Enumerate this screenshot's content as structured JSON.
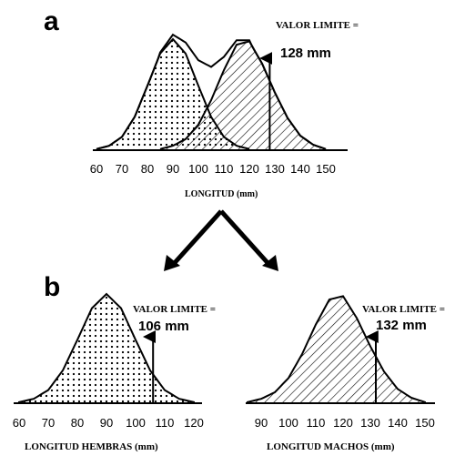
{
  "panel_a": {
    "letter": "a",
    "limit_label": "VALOR LIMITE =",
    "limit_value": "128 mm",
    "x_axis_title": "LONGITUD (mm)",
    "ticks": [
      "60",
      "70",
      "80",
      "90",
      "100",
      "110",
      "120",
      "130",
      "140",
      "150"
    ]
  },
  "panel_b": {
    "letter": "b",
    "females": {
      "limit_label": "VALOR LIMITE =",
      "limit_value": "106 mm",
      "x_axis_title": "LONGITUD HEMBRAS (mm)",
      "ticks": [
        "60",
        "70",
        "80",
        "90",
        "100",
        "110",
        "120"
      ]
    },
    "males": {
      "limit_label": "VALOR LIMITE =",
      "limit_value": "132 mm",
      "x_axis_title": "LONGITUD MACHOS (mm)",
      "ticks": [
        "90",
        "100",
        "110",
        "120",
        "130",
        "140",
        "150"
      ]
    }
  },
  "chart_data": [
    {
      "type": "area",
      "xlabel": "LONGITUD (mm)",
      "xlim": [
        60,
        150
      ],
      "series": [
        {
          "x": [
            60,
            65,
            70,
            75,
            80,
            85,
            90,
            95,
            100,
            105,
            110,
            115,
            120
          ],
          "y": [
            0.01,
            0.04,
            0.12,
            0.3,
            0.58,
            0.87,
            1.0,
            0.87,
            0.58,
            0.3,
            0.12,
            0.04,
            0.01
          ]
        },
        {
          "x": [
            85,
            90,
            95,
            100,
            105,
            110,
            115,
            120,
            125,
            130,
            135,
            140,
            145,
            150
          ],
          "y": [
            0.01,
            0.04,
            0.1,
            0.23,
            0.45,
            0.72,
            0.95,
            0.98,
            0.78,
            0.52,
            0.29,
            0.13,
            0.05,
            0.01
          ]
        }
      ],
      "annotations": [
        {
          "text": "128 mm",
          "x": 128
        }
      ]
    },
    {
      "type": "area",
      "xlabel": "LONGITUD HEMBRAS (mm)",
      "xlim": [
        60,
        120
      ],
      "series": [
        {
          "x": [
            60,
            65,
            70,
            75,
            80,
            85,
            90,
            95,
            100,
            105,
            110,
            115,
            120
          ],
          "y": [
            0.01,
            0.04,
            0.12,
            0.3,
            0.58,
            0.87,
            1.0,
            0.87,
            0.58,
            0.3,
            0.12,
            0.04,
            0.01
          ]
        }
      ],
      "annotations": [
        {
          "text": "106 mm",
          "x": 106
        }
      ]
    },
    {
      "type": "area",
      "xlabel": "LONGITUD MACHOS (mm)",
      "xlim": [
        90,
        150
      ],
      "series": [
        {
          "x": [
            85,
            90,
            95,
            100,
            105,
            110,
            115,
            120,
            125,
            130,
            135,
            140,
            145,
            150
          ],
          "y": [
            0.01,
            0.04,
            0.1,
            0.23,
            0.45,
            0.72,
            0.95,
            0.98,
            0.78,
            0.52,
            0.29,
            0.13,
            0.05,
            0.01
          ]
        }
      ],
      "annotations": [
        {
          "text": "132 mm",
          "x": 132
        }
      ]
    }
  ]
}
